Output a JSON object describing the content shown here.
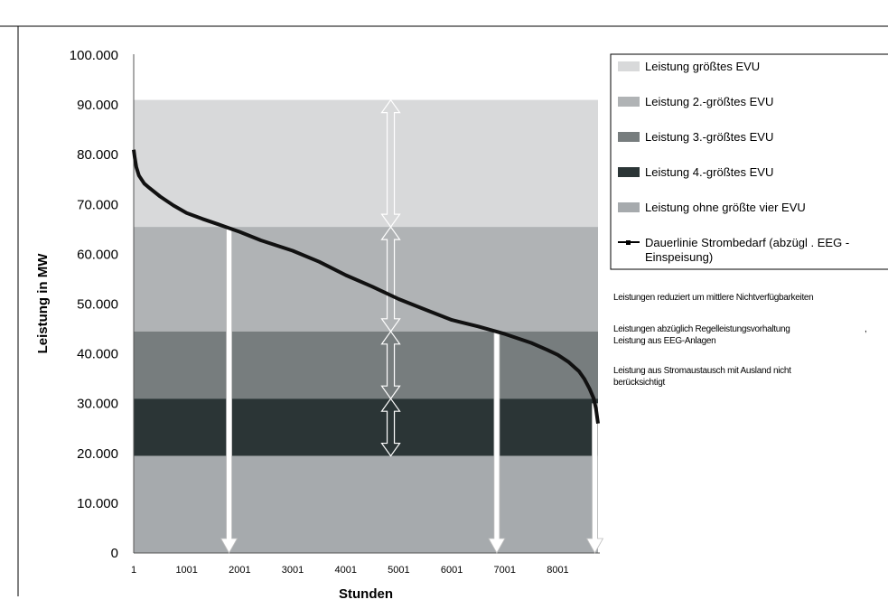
{
  "chart_data": {
    "type": "area",
    "xlabel": "Stunden",
    "ylabel": "Leistung in MW",
    "xlim": [
      1,
      8760
    ],
    "ylim": [
      0,
      100000
    ],
    "x_ticks": [
      "1",
      "1001",
      "2001",
      "3001",
      "4001",
      "5001",
      "6001",
      "7001",
      "8001"
    ],
    "y_ticks": [
      "0",
      "10.000",
      "20.000",
      "30.000",
      "40.000",
      "50.000",
      "60.000",
      "70.000",
      "80.000",
      "90.000",
      "100.000"
    ],
    "series": [
      {
        "name": "Leistung größtes EVU",
        "from": 65500,
        "to": 91000,
        "color": "#d8d9da"
      },
      {
        "name": "Leistung  2.-größtes EVU",
        "from": 44500,
        "to": 65500,
        "color": "#b0b3b5"
      },
      {
        "name": "Leistung  3.-größtes EVU",
        "from": 31000,
        "to": 44500,
        "color": "#777d7e"
      },
      {
        "name": "Leistung  4.-größtes EVU",
        "from": 19500,
        "to": 31000,
        "color": "#2b3536"
      },
      {
        "name": "Leistung ohne größte vier EVU",
        "from": 0,
        "to": 19500,
        "color": "#a6aaad"
      }
    ],
    "line_series": {
      "name_line1": "Dauerlinie Strombedarf    (abzügl . EEG -",
      "name_line2": "Einspeisung)",
      "color": "#111111",
      "x": [
        1,
        20,
        50,
        100,
        200,
        300,
        500,
        750,
        1000,
        1300,
        1600,
        2001,
        2400,
        3001,
        3500,
        4001,
        4500,
        5001,
        5500,
        6001,
        6500,
        7001,
        7500,
        7800,
        8000,
        8200,
        8400,
        8500,
        8600,
        8680,
        8720,
        8760
      ],
      "y": [
        81000,
        79500,
        77500,
        75800,
        74200,
        73300,
        71600,
        69800,
        68300,
        67100,
        66000,
        64500,
        62800,
        60700,
        58500,
        55800,
        53500,
        51000,
        48900,
        46800,
        45500,
        44000,
        42200,
        40800,
        39800,
        38400,
        36500,
        35000,
        33000,
        31000,
        29000,
        26000
      ]
    },
    "arrows_down_at_hours": [
      1800,
      6850,
      8700
    ],
    "double_arrow_hour": 4850
  },
  "notes": [
    [
      "Leistungen reduziert um mittlere Nichtverfügbarkeiten"
    ],
    [
      "Leistungen abzüglich Regelleistungsvorhaltung",
      "Leistung aus EEG-Anlagen"
    ],
    [
      "Leistung aus Stromaustausch mit Ausland nicht",
      "berücksichtigt"
    ]
  ],
  "note_extra_comma": ","
}
